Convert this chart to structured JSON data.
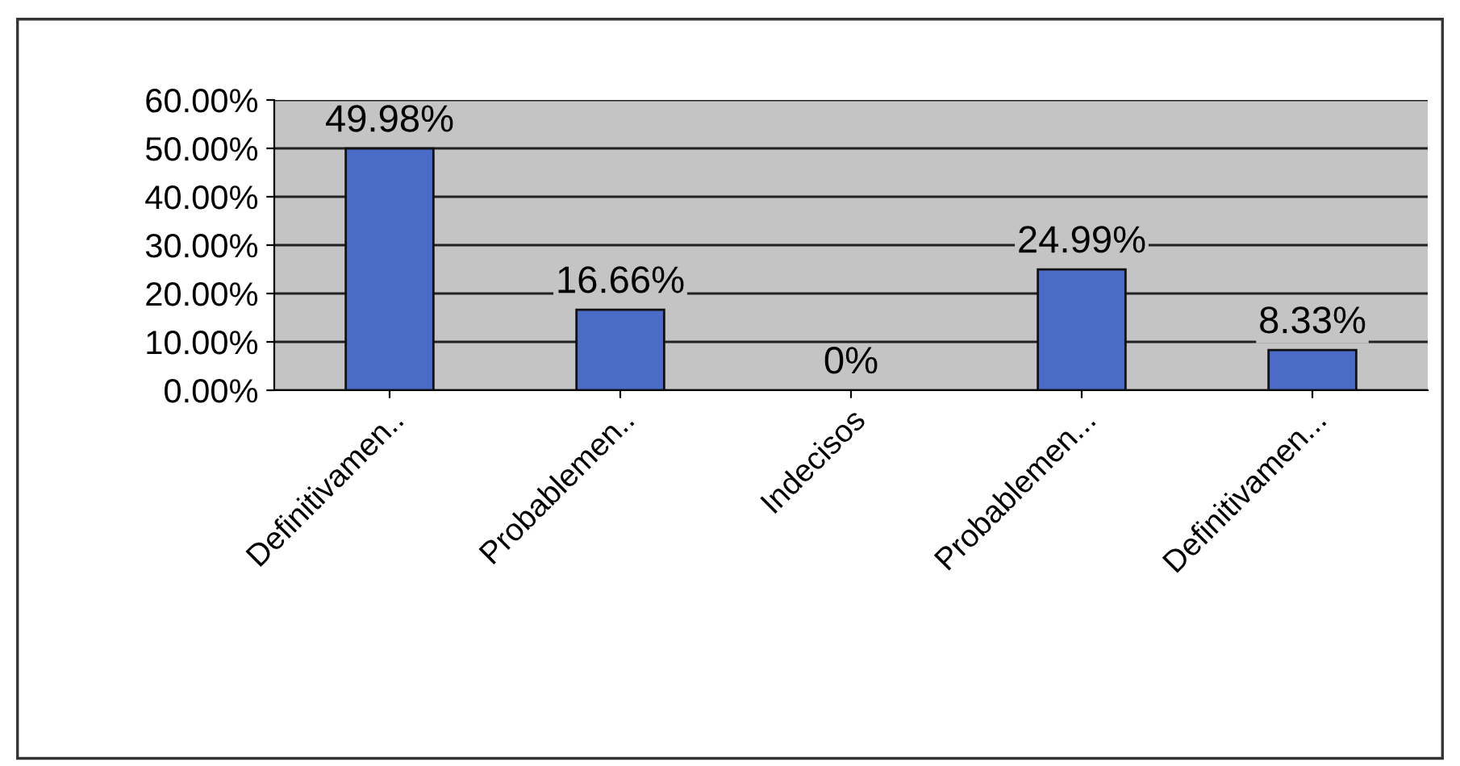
{
  "chart_data": {
    "type": "bar",
    "categories": [
      "Definitivamen..",
      "Probablemen..",
      "Indecisos",
      "Probablemen...",
      "Definitivamen..."
    ],
    "values": [
      49.98,
      16.66,
      0,
      24.99,
      8.33
    ],
    "value_labels": [
      "49.98%",
      "16.66%",
      "0%",
      "24.99%",
      "8.33%"
    ],
    "color": "#4a6bc6",
    "ylim": [
      0,
      60
    ],
    "yticks": [
      {
        "value": 0,
        "label": "0.00%"
      },
      {
        "value": 10,
        "label": "10.00%"
      },
      {
        "value": 20,
        "label": "20.00%"
      },
      {
        "value": 30,
        "label": "30.00%"
      },
      {
        "value": 40,
        "label": "40.00%"
      },
      {
        "value": 50,
        "label": "50.00%"
      },
      {
        "value": 60,
        "label": "60.00%"
      }
    ],
    "grid": "y",
    "legend": false
  }
}
